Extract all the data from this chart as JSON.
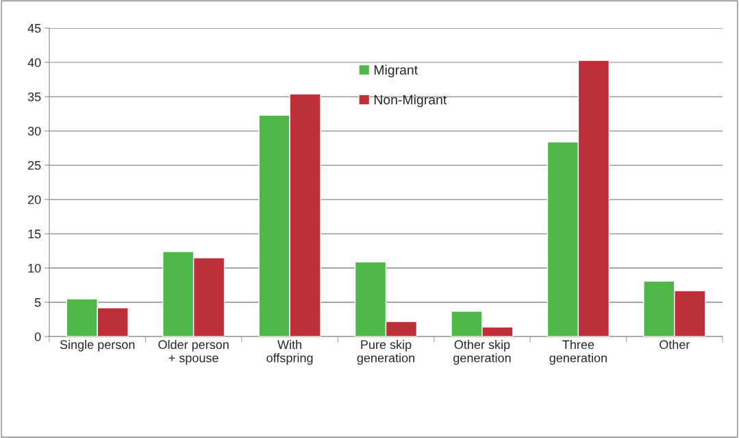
{
  "chart_data": {
    "type": "bar",
    "categories": [
      "Single person",
      "Older person\n+ spouse",
      "With\noffspring",
      "Pure skip\ngeneration",
      "Other skip\ngeneration",
      "Three\ngeneration",
      "Other"
    ],
    "series": [
      {
        "name": "Migrant",
        "color": "#50b848",
        "values": [
          5.5,
          12.4,
          32.3,
          10.9,
          3.7,
          28.4,
          8.1
        ]
      },
      {
        "name": "Non-Migrant",
        "color": "#be3039",
        "values": [
          4.2,
          11.5,
          35.4,
          2.2,
          1.4,
          40.3,
          6.7
        ]
      }
    ],
    "ylim": [
      0,
      45
    ],
    "yticks": [
      0,
      5,
      10,
      15,
      20,
      25,
      30,
      35,
      40,
      45
    ],
    "grid": "y",
    "legend": "top"
  }
}
